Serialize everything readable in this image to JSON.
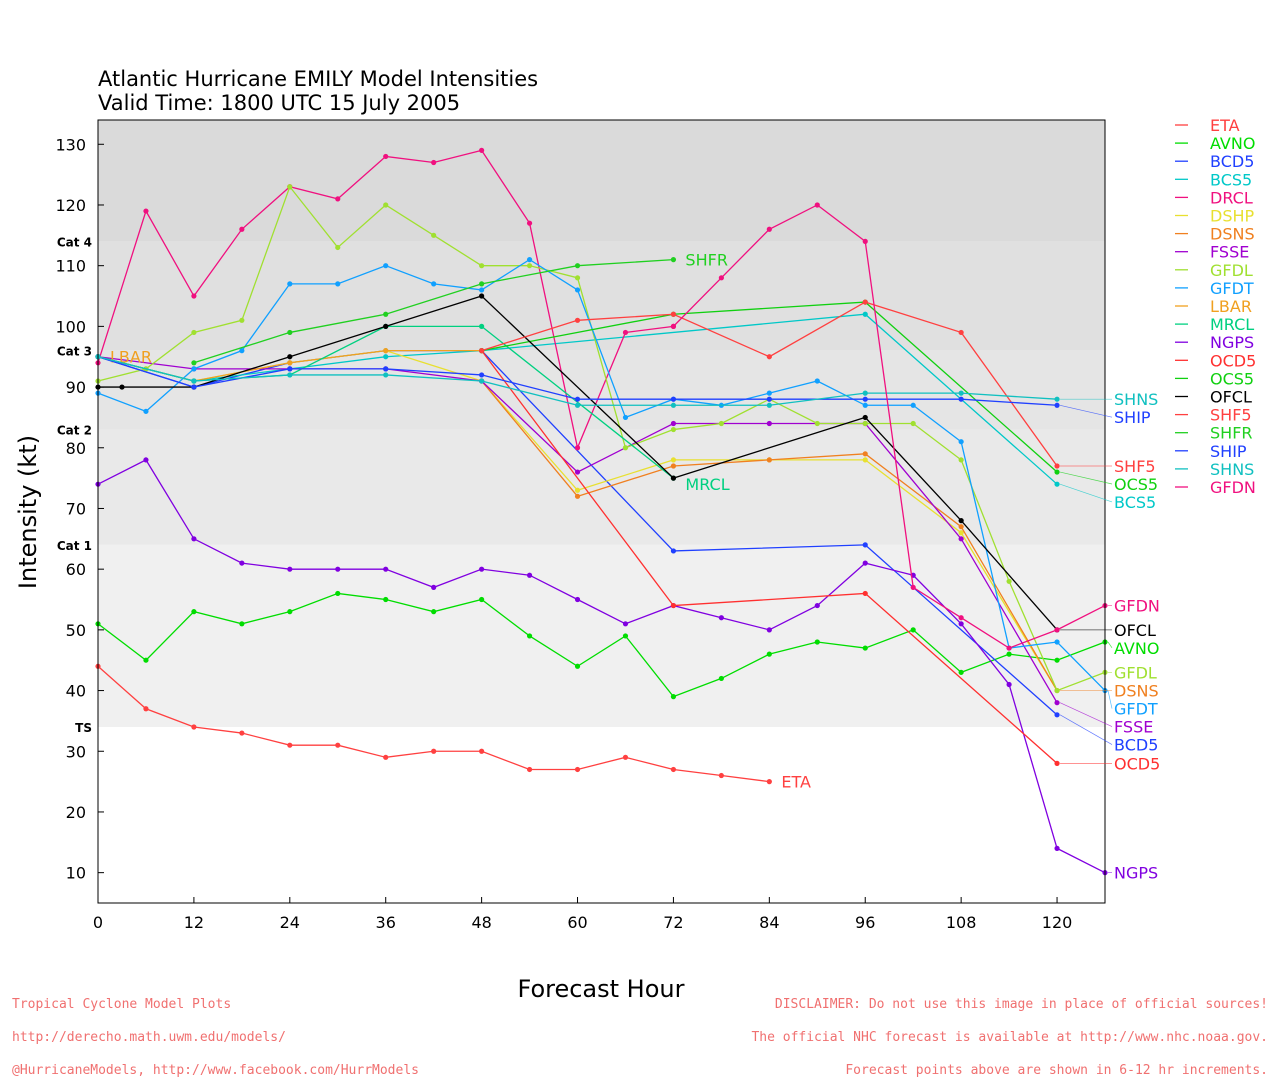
{
  "chart_data": {
    "type": "line",
    "title": "Atlantic Hurricane EMILY Model Intensities",
    "subtitle": "Valid Time: 1800 UTC 15 July 2005",
    "xlabel": "Forecast Hour",
    "ylabel": "Intensity (kt)",
    "xlim": [
      0,
      126
    ],
    "ylim": [
      5,
      134
    ],
    "xticks": [
      0,
      12,
      24,
      36,
      48,
      60,
      72,
      84,
      96,
      108,
      120
    ],
    "yticks": [
      10,
      20,
      30,
      40,
      50,
      60,
      70,
      80,
      90,
      100,
      110,
      120,
      130
    ],
    "legend_position": "right",
    "categories": [
      {
        "label": "Cat 4",
        "min": 114,
        "color": "#dadada"
      },
      {
        "label": "Cat 3",
        "min": 96,
        "color": "#e0e0e0"
      },
      {
        "label": "Cat 2",
        "min": 83,
        "color": "#e5e5e5"
      },
      {
        "label": "Cat 1",
        "min": 64,
        "color": "#e9e9e9"
      },
      {
        "label": "TS",
        "min": 34,
        "color": "#f0f0f0"
      }
    ],
    "series": [
      {
        "name": "ETA",
        "color": "#ff4040",
        "label": true,
        "x": [
          0,
          6,
          12,
          18,
          24,
          30,
          36,
          42,
          48,
          54,
          60,
          66,
          72,
          78,
          84
        ],
        "y": [
          44,
          37,
          34,
          33,
          31,
          31,
          29,
          30,
          30,
          27,
          27,
          29,
          27,
          26,
          25
        ]
      },
      {
        "name": "AVNO",
        "color": "#00dd00",
        "label": true,
        "x": [
          0,
          6,
          12,
          18,
          24,
          30,
          36,
          42,
          48,
          54,
          60,
          66,
          72,
          78,
          84,
          90,
          96,
          102,
          108,
          114,
          120,
          126
        ],
        "y": [
          51,
          45,
          53,
          51,
          53,
          56,
          55,
          53,
          55,
          49,
          44,
          49,
          39,
          42,
          46,
          48,
          47,
          50,
          43,
          46,
          45,
          48
        ]
      },
      {
        "name": "BCD5",
        "color": "#2040ff",
        "label": true,
        "x": [
          0,
          12,
          24,
          36,
          48,
          72,
          96,
          120
        ],
        "y": [
          95,
          90,
          94,
          96,
          96,
          63,
          64,
          36
        ]
      },
      {
        "name": "BCS5",
        "color": "#00c8c8",
        "label": true,
        "x": [
          0,
          12,
          24,
          36,
          48,
          96,
          120
        ],
        "y": [
          95,
          91,
          93,
          95,
          96,
          102,
          74
        ]
      },
      {
        "name": "DRCL",
        "color": "#f0107f",
        "label": false,
        "x": [
          0,
          6,
          12,
          18,
          24,
          30,
          36,
          42,
          48,
          54,
          60,
          66,
          72
        ],
        "y": [
          94,
          119,
          105,
          116,
          123,
          121,
          128,
          127,
          129,
          117,
          80,
          99,
          100
        ]
      },
      {
        "name": "DSHP",
        "color": "#e8e030",
        "label": false,
        "x": [
          0,
          12,
          24,
          36,
          48,
          60,
          72,
          84,
          96,
          108,
          120
        ],
        "y": [
          95,
          91,
          94,
          96,
          91,
          73,
          78,
          78,
          78,
          66,
          40
        ]
      },
      {
        "name": "DSNS",
        "color": "#f08020",
        "label": true,
        "x": [
          48,
          60,
          72,
          84,
          96,
          108,
          120
        ],
        "y": [
          91,
          72,
          77,
          78,
          79,
          67,
          40
        ]
      },
      {
        "name": "FSSE",
        "color": "#a000d0",
        "label": true,
        "x": [
          0,
          12,
          24,
          36,
          48,
          60,
          72,
          84,
          96,
          108,
          120
        ],
        "y": [
          95,
          93,
          93,
          93,
          91,
          76,
          84,
          84,
          84,
          65,
          38
        ]
      },
      {
        "name": "GFDL",
        "color": "#a0e030",
        "label": true,
        "x": [
          0,
          6,
          12,
          18,
          24,
          30,
          36,
          42,
          48,
          54,
          60,
          66,
          72,
          78,
          84,
          90,
          96,
          102,
          108,
          114,
          120,
          126
        ],
        "y": [
          91,
          93,
          99,
          101,
          123,
          113,
          120,
          115,
          110,
          110,
          108,
          80,
          83,
          84,
          88,
          84,
          84,
          84,
          78,
          58,
          40,
          43
        ]
      },
      {
        "name": "GFDT",
        "color": "#10a0ff",
        "label": true,
        "x": [
          0,
          6,
          12,
          18,
          24,
          30,
          36,
          42,
          48,
          54,
          60,
          66,
          72,
          78,
          84,
          90,
          96,
          102,
          108,
          114,
          120,
          126
        ],
        "y": [
          89,
          86,
          93,
          96,
          107,
          107,
          110,
          107,
          106,
          111,
          106,
          85,
          88,
          87,
          89,
          91,
          87,
          87,
          81,
          47,
          48,
          40
        ]
      },
      {
        "name": "LBAR",
        "color": "#f0a020",
        "label": "start",
        "x": [
          0,
          12,
          24,
          36,
          48
        ],
        "y": [
          95,
          91,
          94,
          96,
          96
        ]
      },
      {
        "name": "MRCL",
        "color": "#00d080",
        "label": true,
        "x": [
          0,
          12,
          24,
          36,
          48,
          72
        ],
        "y": [
          95,
          91,
          92,
          100,
          100,
          75
        ]
      },
      {
        "name": "NGPS",
        "color": "#8000e0",
        "label": true,
        "x": [
          0,
          6,
          12,
          18,
          24,
          30,
          36,
          42,
          48,
          54,
          60,
          66,
          72,
          78,
          84,
          90,
          96,
          102,
          108,
          114,
          120,
          126
        ],
        "y": [
          74,
          78,
          65,
          61,
          60,
          60,
          60,
          57,
          60,
          59,
          55,
          51,
          54,
          52,
          50,
          54,
          61,
          59,
          51,
          41,
          14,
          10
        ]
      },
      {
        "name": "OCD5",
        "color": "#ff3030",
        "label": true,
        "x": [
          48,
          72,
          96,
          120
        ],
        "y": [
          96,
          54,
          56,
          28
        ]
      },
      {
        "name": "OCS5",
        "color": "#10d010",
        "label": true,
        "x": [
          48,
          72,
          96,
          120
        ],
        "y": [
          96,
          102,
          104,
          76
        ]
      },
      {
        "name": "OFCL",
        "color": "#000000",
        "label": true,
        "x": [
          0,
          3,
          12,
          24,
          36,
          48,
          72,
          96,
          108,
          120
        ],
        "y": [
          90,
          90,
          90,
          95,
          100,
          105,
          75,
          85,
          68,
          50
        ]
      },
      {
        "name": "SHF5",
        "color": "#ff4040",
        "label": true,
        "x": [
          48,
          60,
          72,
          84,
          96,
          108,
          120
        ],
        "y": [
          96,
          101,
          102,
          95,
          104,
          99,
          77
        ]
      },
      {
        "name": "SHFR",
        "color": "#20d020",
        "label": true,
        "x": [
          12,
          24,
          36,
          48,
          60,
          72
        ],
        "y": [
          94,
          99,
          102,
          107,
          110,
          111
        ]
      },
      {
        "name": "SHIP",
        "color": "#2040ff",
        "label": true,
        "x": [
          0,
          12,
          24,
          36,
          48,
          60,
          72,
          84,
          96,
          108,
          120
        ],
        "y": [
          95,
          90,
          93,
          93,
          92,
          88,
          88,
          88,
          88,
          88,
          87
        ]
      },
      {
        "name": "SHNS",
        "color": "#10c0c0",
        "label": true,
        "x": [
          0,
          12,
          24,
          36,
          48,
          60,
          72,
          84,
          96,
          108,
          120
        ],
        "y": [
          95,
          91,
          92,
          92,
          91,
          87,
          87,
          87,
          89,
          89,
          88
        ]
      },
      {
        "name": "GFDN",
        "color": "#f0107f",
        "label": true,
        "x": [
          72,
          78,
          84,
          90,
          96,
          102,
          108,
          114,
          120,
          126
        ],
        "y": [
          100,
          108,
          116,
          120,
          114,
          57,
          52,
          47,
          50,
          54
        ]
      }
    ]
  },
  "footer": {
    "left": [
      "Tropical Cyclone Model Plots",
      "http://derecho.math.uwm.edu/models/",
      "@HurricaneModels, http://www.facebook.com/HurrModels"
    ],
    "right": [
      "DISCLAIMER: Do not use this image in place of official sources!",
      "The official NHC forecast is available at http://www.nhc.noaa.gov.",
      "Forecast points above are shown in 6-12 hr increments."
    ]
  }
}
